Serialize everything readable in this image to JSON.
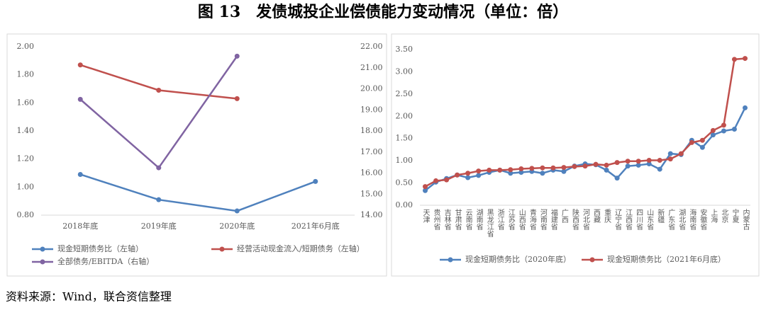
{
  "title": "图 13　发债城投企业偿债能力变动情况（单位：倍）",
  "source": "资料来源：Wind，联合资信整理",
  "chart_data": [
    {
      "type": "line",
      "categories": [
        "2018年底",
        "2019年底",
        "2020年底",
        "2021年6月底"
      ],
      "ylim": [
        0.8,
        2.0
      ],
      "yticks": [
        {
          "value": 0.8,
          "label": "0.80"
        },
        {
          "value": 1.0,
          "label": "1.00"
        },
        {
          "value": 1.2,
          "label": "1.20"
        },
        {
          "value": 1.4,
          "label": "1.40"
        },
        {
          "value": 1.6,
          "label": "1.60"
        },
        {
          "value": 1.8,
          "label": "1.80"
        },
        {
          "value": 2.0,
          "label": "2.00"
        }
      ],
      "y2lim": [
        14,
        22
      ],
      "y2ticks": [
        {
          "value": 14,
          "label": "14.00"
        },
        {
          "value": 15,
          "label": "15.00"
        },
        {
          "value": 16,
          "label": "16.00"
        },
        {
          "value": 17,
          "label": "17.00"
        },
        {
          "value": 18,
          "label": "18.00"
        },
        {
          "value": 19,
          "label": "19.00"
        },
        {
          "value": 20,
          "label": "20.00"
        },
        {
          "value": 21,
          "label": "21.00"
        },
        {
          "value": 22,
          "label": "22.00"
        }
      ],
      "grid": false,
      "series": [
        {
          "name": "现金短期债务比（左轴）",
          "color": "#4f81bd",
          "values": [
            1.09,
            0.91,
            0.83,
            1.04
          ]
        },
        {
          "name": "经营活动现金流入/短期债务（左轴）",
          "color": "#c0504d",
          "values": [
            1.87,
            1.69,
            1.63,
            null
          ]
        },
        {
          "name": "全部债务/EBITDA（右轴）",
          "color": "#8064a2",
          "axis": "y2",
          "values": [
            19.5,
            16.25,
            21.55,
            null
          ]
        }
      ]
    },
    {
      "type": "line",
      "categories": [
        "天津",
        "贵州省",
        "吉林省",
        "甘肃省",
        "云南省",
        "湖南省",
        "黑龙江省",
        "浙江省",
        "江苏省",
        "山西省",
        "青海省",
        "河南省",
        "福建省",
        "广西",
        "陕西省",
        "河北省",
        "西藏",
        "重庆",
        "辽宁省",
        "江西省",
        "四川省",
        "山东省",
        "新疆",
        "广东省",
        "湖北省",
        "海南省",
        "安徽省",
        "上海",
        "北京",
        "宁夏",
        "内蒙古"
      ],
      "ylim": [
        0,
        3.5
      ],
      "yticks": [
        {
          "value": 0,
          "label": "0.00"
        },
        {
          "value": 0.5,
          "label": "0.50"
        },
        {
          "value": 1.0,
          "label": "1.00"
        },
        {
          "value": 1.5,
          "label": "1.50"
        },
        {
          "value": 2.0,
          "label": "2.00"
        },
        {
          "value": 2.5,
          "label": "2.50"
        },
        {
          "value": 3.0,
          "label": "3.00"
        },
        {
          "value": 3.5,
          "label": "3.50"
        }
      ],
      "grid": false,
      "series": [
        {
          "name": "现金短期债务比（2020年底）",
          "color": "#4f81bd",
          "values": [
            0.33,
            0.52,
            0.6,
            0.68,
            0.62,
            0.67,
            0.74,
            0.79,
            0.72,
            0.74,
            0.76,
            0.72,
            0.79,
            0.76,
            0.88,
            0.93,
            0.91,
            0.79,
            0.61,
            0.88,
            0.9,
            0.93,
            0.81,
            1.16,
            1.14,
            1.46,
            1.3,
            1.58,
            1.67,
            1.71,
            2.19
          ]
        },
        {
          "name": "现金短期债务比（2021年6月底）",
          "color": "#c0504d",
          "values": [
            0.42,
            0.55,
            0.57,
            0.68,
            0.72,
            0.77,
            0.79,
            0.79,
            0.8,
            0.82,
            0.83,
            0.84,
            0.84,
            0.85,
            0.87,
            0.88,
            0.92,
            0.9,
            0.96,
            0.99,
            0.99,
            1.01,
            1.01,
            1.04,
            1.16,
            1.41,
            1.46,
            1.68,
            1.8,
            3.28,
            3.3
          ]
        }
      ]
    }
  ]
}
